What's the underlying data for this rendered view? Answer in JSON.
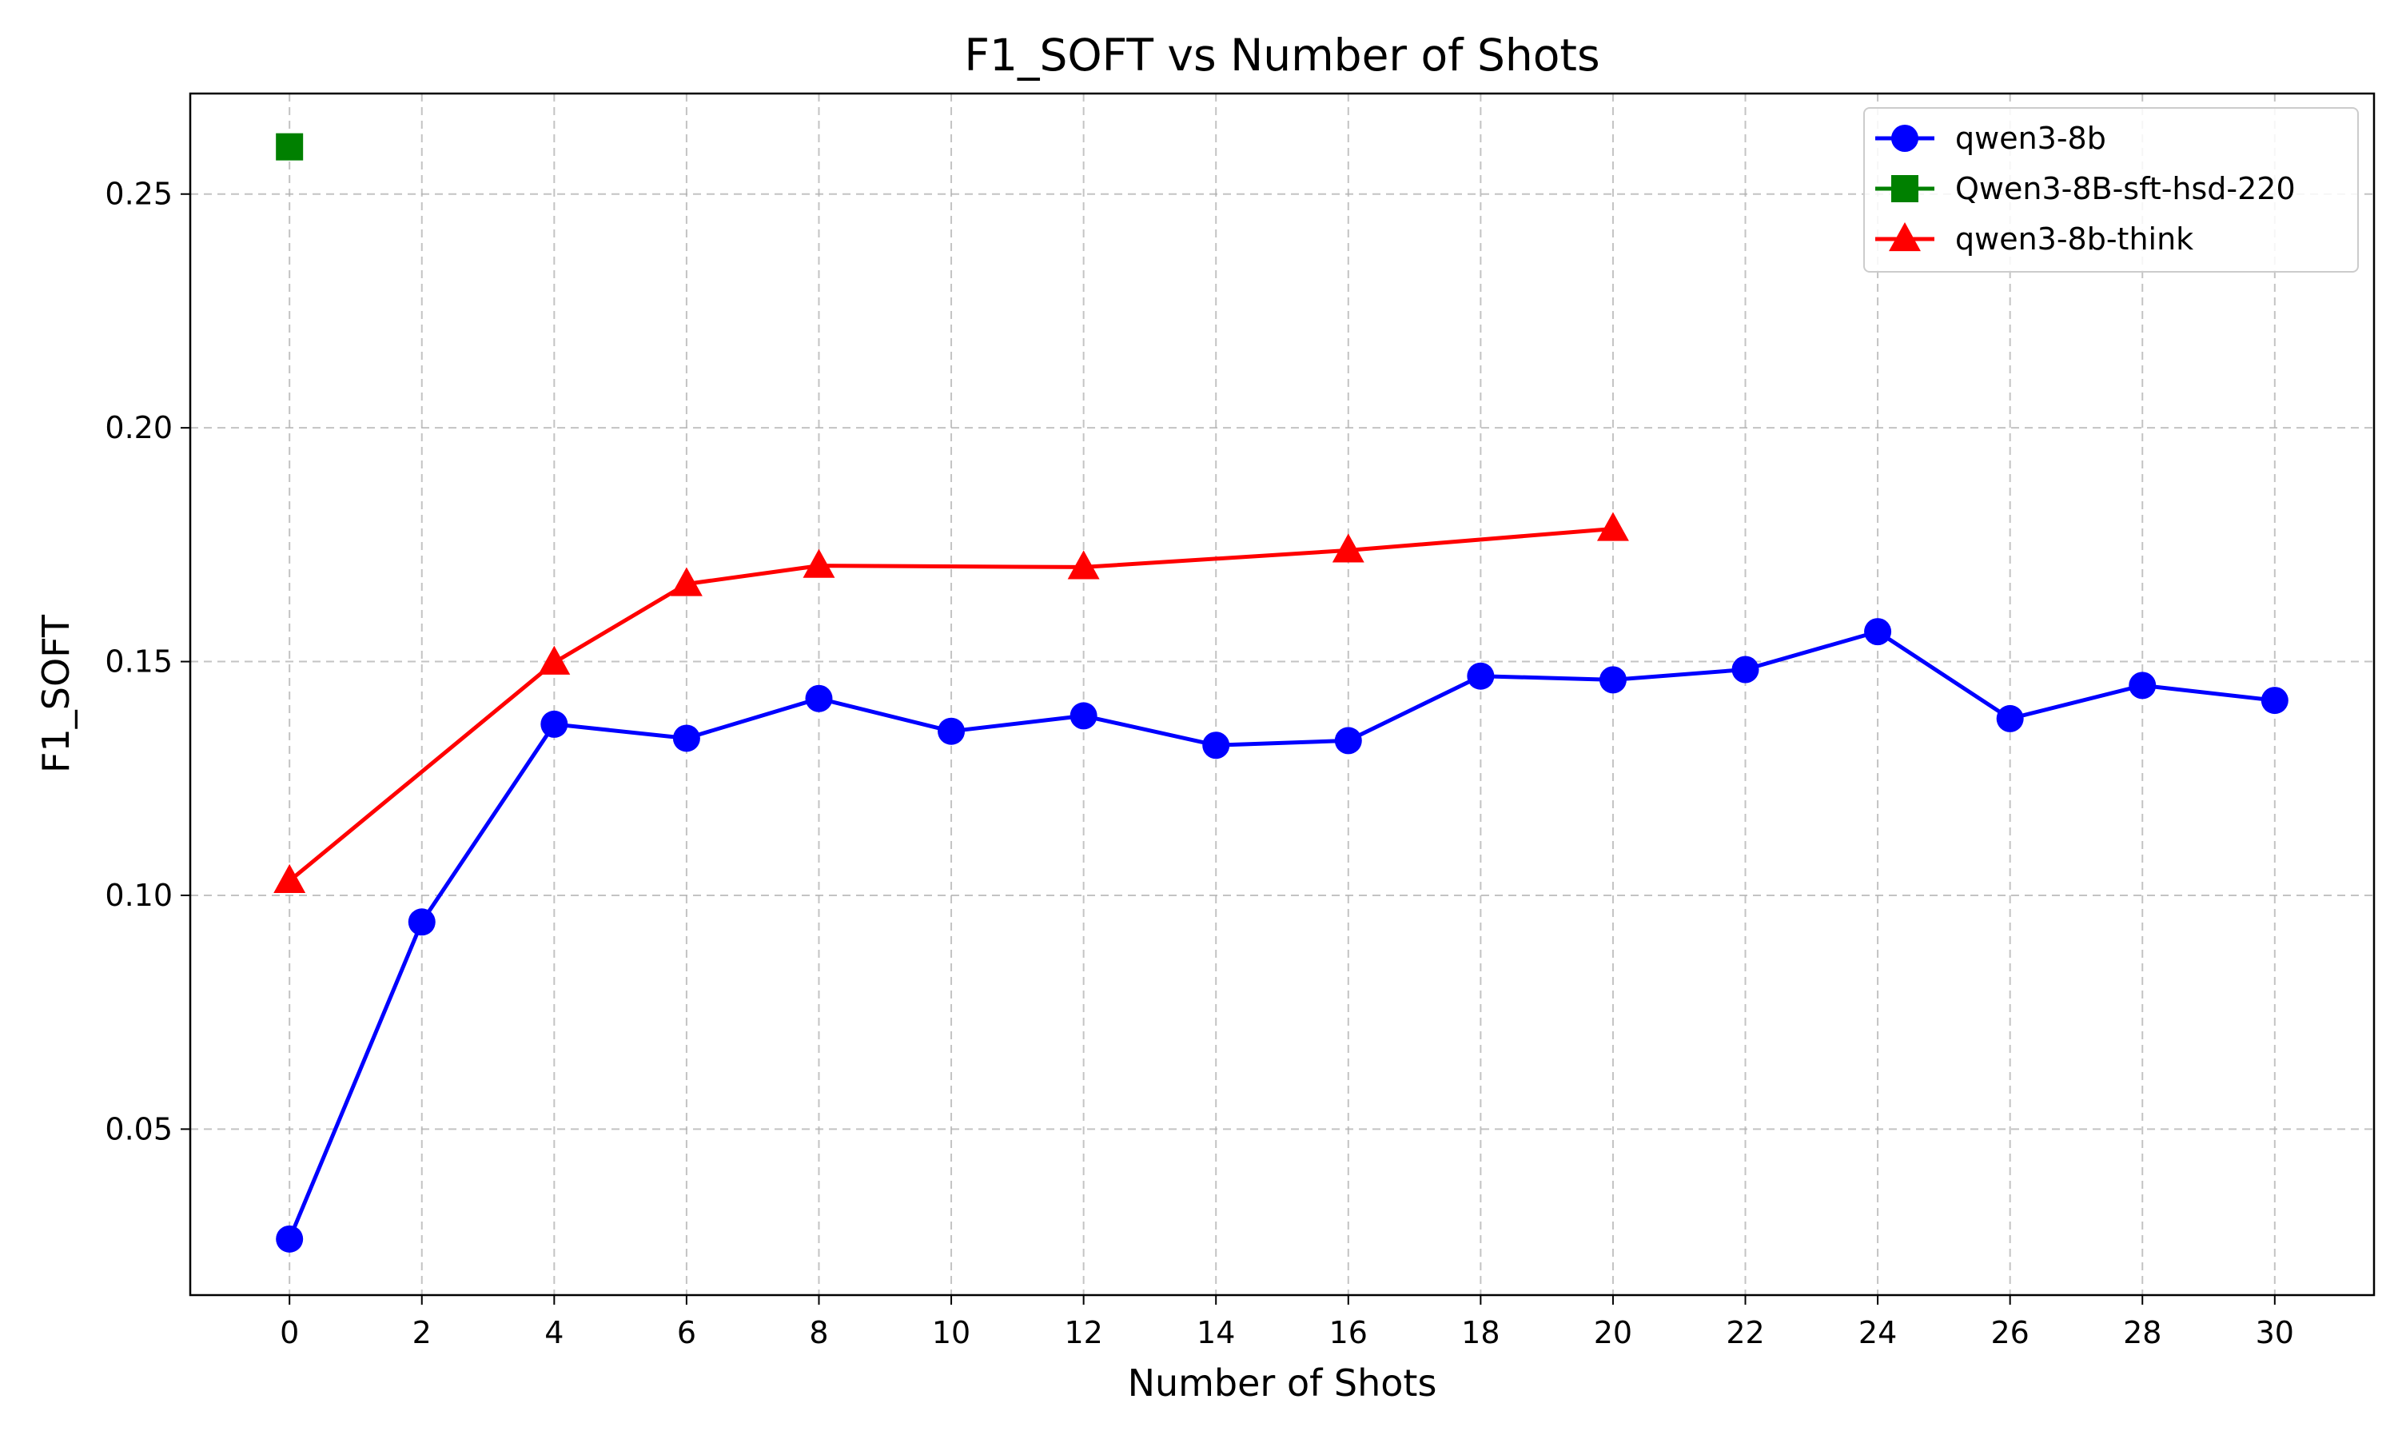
{
  "chart_data": {
    "type": "line",
    "title": "F1_SOFT vs Number of Shots",
    "xlabel": "Number of Shots",
    "ylabel": "F1_SOFT",
    "xlim": [
      -1.5,
      31.5
    ],
    "ylim": [
      0.0145,
      0.2715
    ],
    "xticks": [
      0,
      2,
      4,
      6,
      8,
      10,
      12,
      14,
      16,
      18,
      20,
      22,
      24,
      26,
      28,
      30
    ],
    "yticks": [
      0.05,
      0.1,
      0.15,
      0.2,
      0.25
    ],
    "ytick_labels": [
      "0.05",
      "0.10",
      "0.15",
      "0.20",
      "0.25"
    ],
    "grid": true,
    "legend_position": "top-right",
    "series": [
      {
        "name": "qwen3-8b",
        "color": "#0000ff",
        "marker": "circle",
        "x": [
          0,
          2,
          4,
          6,
          8,
          10,
          12,
          14,
          16,
          18,
          20,
          22,
          24,
          26,
          28,
          30
        ],
        "y": [
          0.0265,
          0.0943,
          0.1366,
          0.1336,
          0.1421,
          0.1351,
          0.1384,
          0.1321,
          0.1331,
          0.1469,
          0.1461,
          0.1483,
          0.1564,
          0.1378,
          0.1449,
          0.1417
        ]
      },
      {
        "name": "Qwen3-8B-sft-hsd-220",
        "color": "#008000",
        "marker": "square",
        "x": [
          0
        ],
        "y": [
          0.2601
        ]
      },
      {
        "name": "qwen3-8b-think",
        "color": "#ff0000",
        "marker": "triangle",
        "x": [
          0,
          4,
          6,
          8,
          12,
          16,
          20
        ],
        "y": [
          0.1031,
          0.1498,
          0.1666,
          0.1705,
          0.1702,
          0.1738,
          0.1784
        ]
      }
    ]
  }
}
